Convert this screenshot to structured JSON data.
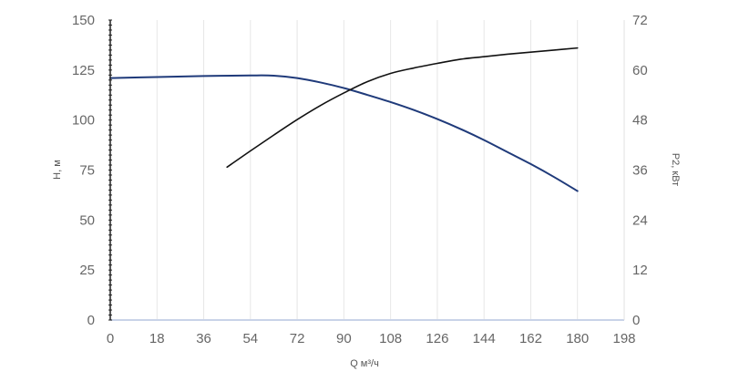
{
  "chart_data": {
    "type": "line",
    "title": "",
    "xlabel": "Q м³/ч",
    "ylabel_left": "H, м",
    "ylabel_right": "P2, кВт",
    "x_ticks": [
      0,
      18,
      36,
      54,
      72,
      90,
      108,
      126,
      144,
      162,
      180,
      198
    ],
    "y_left_ticks": [
      0,
      25,
      50,
      75,
      100,
      125,
      150
    ],
    "y_right_ticks": [
      0,
      12,
      24,
      36,
      48,
      60,
      72
    ],
    "xlim": [
      0,
      198
    ],
    "ylim_left": [
      0,
      150
    ],
    "ylim_right": [
      0,
      72
    ],
    "grid": true,
    "legend": "none",
    "series": [
      {
        "axis": "left",
        "color": "#1f3a7a",
        "x": [
          0,
          18,
          36,
          54,
          63,
          72,
          81,
          90,
          99,
          108,
          117,
          126,
          135,
          144,
          153,
          162,
          171,
          180
        ],
        "y": [
          121,
          121.5,
          122,
          122.3,
          122.2,
          121,
          118.8,
          116,
          112.6,
          109,
          105,
          100.5,
          95.5,
          90,
          84,
          78,
          71.5,
          64.5
        ]
      },
      {
        "axis": "right",
        "color": "#111111",
        "x": [
          45,
          54,
          63,
          72,
          81,
          90,
          99,
          108,
          117,
          126,
          135,
          144,
          153,
          162,
          171,
          180
        ],
        "y": [
          36.7,
          40.6,
          44.4,
          48.1,
          51.5,
          54.5,
          57.2,
          59.2,
          60.5,
          61.6,
          62.6,
          63.2,
          63.8,
          64.3,
          64.8,
          65.3
        ]
      }
    ]
  }
}
